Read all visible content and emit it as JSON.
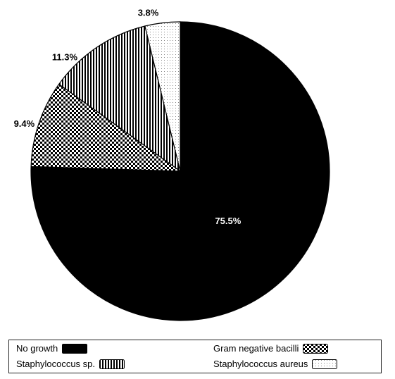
{
  "chart_data": {
    "type": "pie",
    "title": "",
    "start_angle_deg": 0,
    "direction": "clockwise",
    "slices": [
      {
        "name": "No growth",
        "value": 75.5,
        "label": "75.5%",
        "pattern": "solid-black",
        "color": "#000000"
      },
      {
        "name": "Gram negative bacilli",
        "value": 9.4,
        "label": "9.4%",
        "pattern": "checker",
        "color": "#000000"
      },
      {
        "name": "Staphylococcus sp.",
        "value": 11.3,
        "label": "11.3%",
        "pattern": "vertical-stripes",
        "color": "#000000"
      },
      {
        "name": "Staphylococcus aureus",
        "value": 3.8,
        "label": "3.8%",
        "pattern": "dots",
        "color": "#888888"
      }
    ],
    "legend_placement": "bottom",
    "legend": [
      {
        "label": "No growth",
        "pattern": "solid-black"
      },
      {
        "label": "Gram negative bacilli",
        "pattern": "checker"
      },
      {
        "label": "Staphylococcus sp.",
        "pattern": "vertical-stripes"
      },
      {
        "label": "Staphylococcus aureus",
        "pattern": "dots"
      }
    ]
  }
}
